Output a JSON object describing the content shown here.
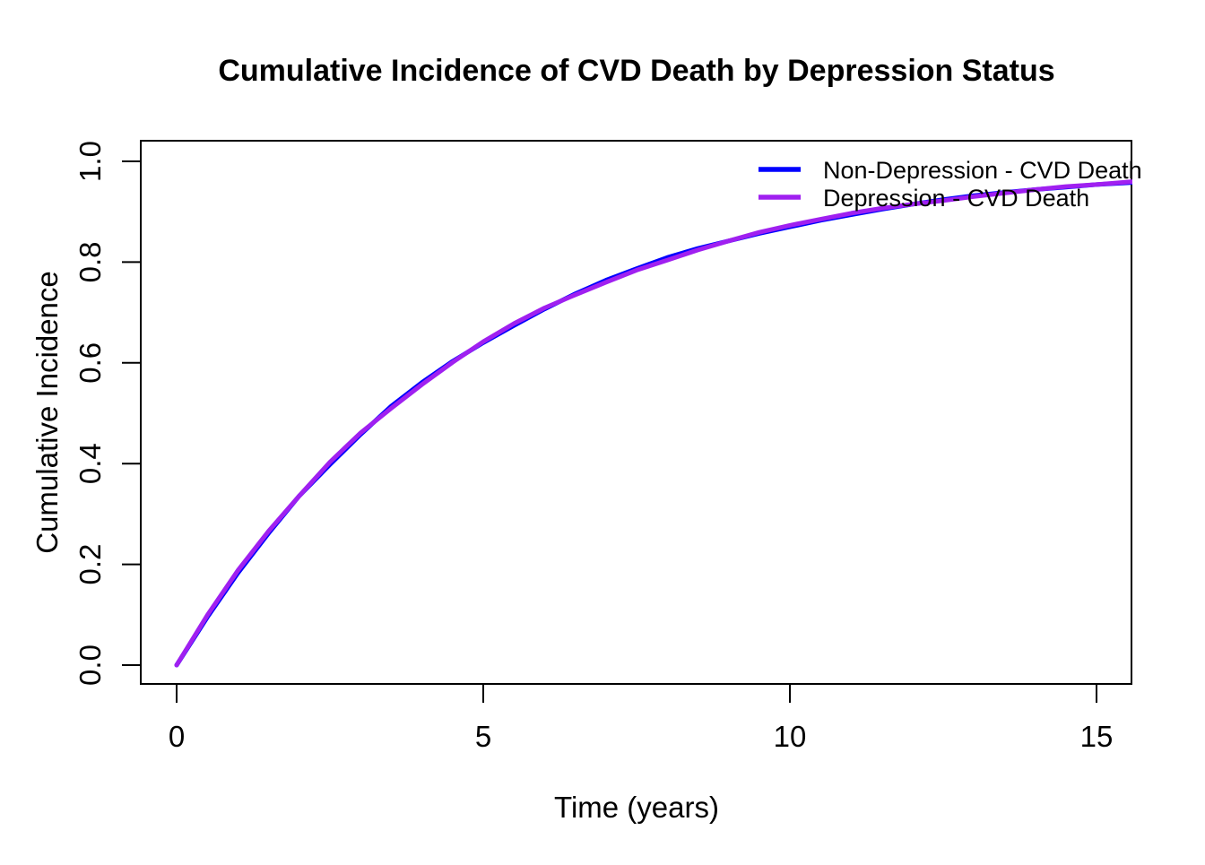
{
  "page": {
    "background_color": "#FFFFFF",
    "text_color": "#000000",
    "axis_color": "#000000"
  },
  "chart_data": {
    "type": "line",
    "title": "Cumulative Incidence of CVD Death by Depression Status",
    "xlabel": "Time (years)",
    "ylabel": "Cumulative Incidence",
    "xlim": [
      0,
      15.6
    ],
    "ylim": [
      0.0,
      1.0
    ],
    "grid": false,
    "legend_position": "top-right",
    "x_ticks": [
      0,
      5,
      10,
      15
    ],
    "x_tick_labels": [
      "0",
      "5",
      "10",
      "15"
    ],
    "y_ticks": [
      0.0,
      0.2,
      0.4,
      0.6,
      0.8,
      1.0
    ],
    "y_tick_labels": [
      "0.0",
      "0.2",
      "0.4",
      "0.6",
      "0.8",
      "1.0"
    ],
    "x": [
      0,
      0.5,
      1,
      1.5,
      2,
      2.5,
      3,
      3.5,
      4,
      4.5,
      5,
      5.5,
      6,
      6.5,
      7,
      7.5,
      8,
      8.5,
      9,
      9.5,
      10,
      10.5,
      11,
      11.5,
      12,
      12.5,
      13,
      13.5,
      14,
      14.5,
      15,
      15.6
    ],
    "series": [
      {
        "name": "Non-Depression - CVD Death",
        "color": "#0000FF",
        "values": [
          0,
          0.095,
          0.183,
          0.262,
          0.336,
          0.398,
          0.458,
          0.514,
          0.561,
          0.603,
          0.64,
          0.674,
          0.707,
          0.737,
          0.764,
          0.787,
          0.809,
          0.827,
          0.842,
          0.857,
          0.87,
          0.883,
          0.894,
          0.905,
          0.915,
          0.924,
          0.932,
          0.938,
          0.944,
          0.949,
          0.954,
          0.958
        ]
      },
      {
        "name": "Depression - CVD Death",
        "color": "#A020F0",
        "values": [
          0,
          0.099,
          0.188,
          0.266,
          0.336,
          0.403,
          0.461,
          0.51,
          0.557,
          0.601,
          0.642,
          0.678,
          0.709,
          0.735,
          0.76,
          0.784,
          0.804,
          0.824,
          0.842,
          0.859,
          0.873,
          0.885,
          0.897,
          0.907,
          0.915,
          0.922,
          0.93,
          0.937,
          0.944,
          0.95,
          0.954,
          0.96
        ]
      }
    ]
  }
}
